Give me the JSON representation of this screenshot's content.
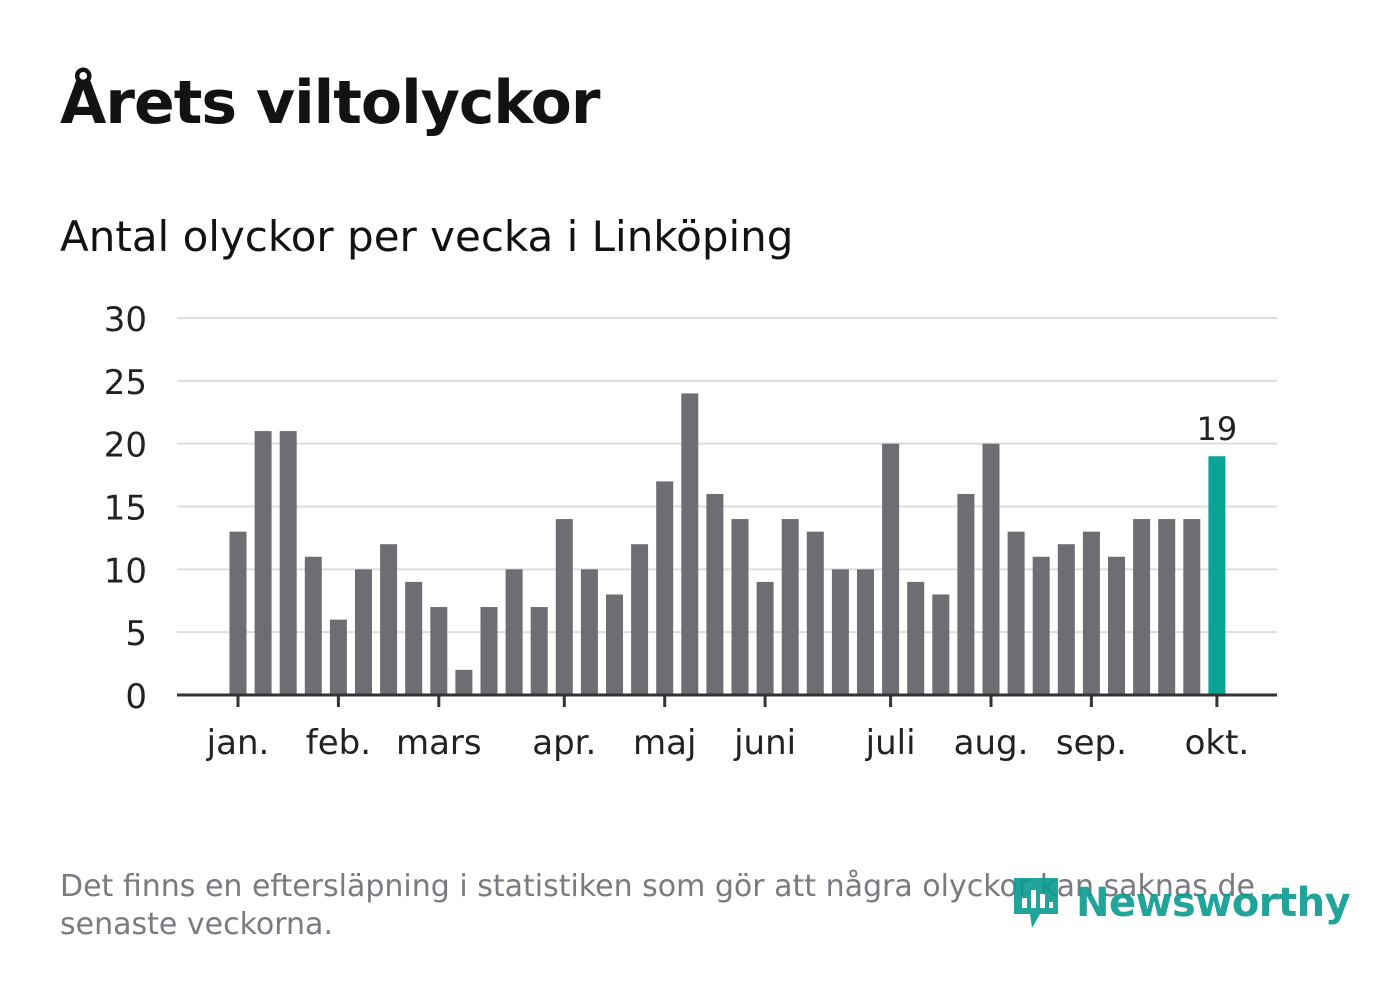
{
  "header": {
    "title": "Årets viltolyckor",
    "subtitle": "Antal olyckor per vecka i Linköping"
  },
  "footer": {
    "note": "Det finns en eftersläpning i statistiken som gör att några olyckor kan saknas de senaste veckorna.",
    "brand": "Newsworthy"
  },
  "colors": {
    "bar": "#6e6d72",
    "highlight": "#0aa397",
    "grid": "#dddddd",
    "axis": "#333333",
    "text": "#222222"
  },
  "chart_data": {
    "type": "bar",
    "title": "Årets viltolyckor",
    "subtitle": "Antal olyckor per vecka i Linköping",
    "xlabel": "",
    "ylabel": "",
    "ylim": [
      0,
      30
    ],
    "yticks": [
      0,
      5,
      10,
      15,
      20,
      25,
      30
    ],
    "grid": true,
    "values": [
      13,
      21,
      21,
      11,
      6,
      10,
      12,
      9,
      7,
      2,
      7,
      10,
      7,
      14,
      10,
      8,
      12,
      17,
      24,
      16,
      14,
      9,
      14,
      13,
      10,
      10,
      20,
      9,
      8,
      16,
      20,
      13,
      11,
      12,
      13,
      11,
      14,
      14,
      14,
      19
    ],
    "month_ticks": [
      {
        "label": "jan.",
        "week_index": 0
      },
      {
        "label": "feb.",
        "week_index": 4
      },
      {
        "label": "mars",
        "week_index": 8
      },
      {
        "label": "apr.",
        "week_index": 13
      },
      {
        "label": "maj",
        "week_index": 17
      },
      {
        "label": "juni",
        "week_index": 21
      },
      {
        "label": "juli",
        "week_index": 26
      },
      {
        "label": "aug.",
        "week_index": 30
      },
      {
        "label": "sep.",
        "week_index": 34
      },
      {
        "label": "okt.",
        "week_index": 39
      }
    ],
    "highlight_index": 39,
    "highlight_label": "19"
  }
}
